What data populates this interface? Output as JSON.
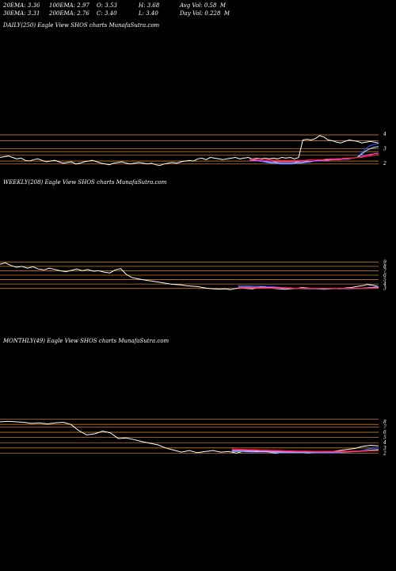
{
  "stats": {
    "row1": [
      "20EMA: 3.36",
      "100EMA: 2.97",
      "O: 3.53",
      "H: 3.68",
      "Avg Vol: 0.58  M"
    ],
    "row2": [
      "30EMA: 3.31",
      "200EMA: 2.76",
      "C: 3.40",
      "L: 3.40",
      "Day Vol: 0.228  M"
    ]
  },
  "panels": {
    "daily_label": "DAILY(250) Eagle   View  SHOS charts MunafaSutra.com",
    "weekly_label": "WEEKLY(208) Eagle   View  SHOS charts MunafaSutra.com",
    "monthly_label": "MONTHLY(49) Eagle   View  SHOS charts MunafaSutra.com"
  },
  "colors": {
    "background": "#000000",
    "price": "#ffffff",
    "ema_blue": "#3355ff",
    "ema_light": "#aaddff",
    "ema_magenta": "#ff44ff",
    "ema_red": "#ff2222",
    "level_lines": "#c8782a"
  },
  "chart_data": [
    {
      "type": "line",
      "title": "DAILY(250) Eagle   View  SHOS charts MunafaSutra.com",
      "y_tick_labels": [
        "4",
        "3",
        "2"
      ],
      "ylim": [
        1.5,
        4.5
      ],
      "y_ticks": [
        4,
        3,
        2
      ],
      "levels": [
        3.95,
        3.55,
        3.0,
        2.8,
        2.55,
        2.15,
        1.95
      ],
      "series": [
        {
          "role": "price",
          "color": "#ffffff",
          "values": [
            2.4,
            2.45,
            2.5,
            2.4,
            2.3,
            2.35,
            2.2,
            2.15,
            2.25,
            2.3,
            2.2,
            2.1,
            2.15,
            2.2,
            2.1,
            2.0,
            2.05,
            2.1,
            1.95,
            2.0,
            2.1,
            2.15,
            2.2,
            2.1,
            2.0,
            1.95,
            1.9,
            2.0,
            2.05,
            2.1,
            2.0,
            1.95,
            2.0,
            2.05,
            2.0,
            1.95,
            2.0,
            1.9,
            1.85,
            1.95,
            2.0,
            2.05,
            2.0,
            2.1,
            2.15,
            2.2,
            2.15,
            2.3,
            2.35,
            2.25,
            2.4,
            2.35,
            2.3,
            2.25,
            2.3,
            2.35,
            2.4,
            2.3,
            2.35,
            2.4,
            2.3,
            2.35,
            2.3,
            2.35,
            2.3,
            2.35,
            2.3,
            2.4,
            2.35,
            2.4,
            2.3,
            2.4,
            3.6,
            3.65,
            3.6,
            3.7,
            3.9,
            3.8,
            3.6,
            3.55,
            3.45,
            3.4,
            3.5,
            3.6,
            3.55,
            3.5,
            3.4,
            3.45,
            3.5,
            3.45,
            3.4
          ]
        },
        {
          "role": "ema",
          "color": "#3355ff",
          "values": [
            2.2,
            2.2,
            2.15,
            2.1,
            2.05,
            2.0,
            2.0,
            1.95,
            1.95,
            1.95,
            1.95,
            2.0,
            2.0,
            2.05,
            2.1,
            2.15,
            2.15,
            2.2,
            2.2,
            2.25,
            2.25,
            2.3,
            2.3,
            2.3,
            2.35,
            2.4,
            2.7,
            3.0,
            3.2,
            3.3,
            3.35
          ]
        },
        {
          "role": "ema",
          "color": "#aaddff",
          "values": [
            2.3,
            2.25,
            2.2,
            2.15,
            2.1,
            2.05,
            2.05,
            2.0,
            2.0,
            2.0,
            2.0,
            2.05,
            2.05,
            2.1,
            2.1,
            2.15,
            2.2,
            2.2,
            2.25,
            2.25,
            2.3,
            2.3,
            2.3,
            2.35,
            2.35,
            2.4,
            2.6,
            2.85,
            3.0,
            3.1,
            3.15
          ]
        },
        {
          "role": "ema",
          "color": "#ff44ff",
          "values": [
            2.2,
            2.2,
            2.2,
            2.15,
            2.15,
            2.15,
            2.1,
            2.1,
            2.1,
            2.1,
            2.1,
            2.1,
            2.15,
            2.15,
            2.15,
            2.15,
            2.2,
            2.2,
            2.2,
            2.25,
            2.25,
            2.25,
            2.3,
            2.3,
            2.35,
            2.4,
            2.45,
            2.55,
            2.6,
            2.65,
            2.7
          ]
        },
        {
          "role": "ema",
          "color": "#ff2222",
          "values": [
            2.3,
            2.3,
            2.3,
            2.25,
            2.25,
            2.25,
            2.2,
            2.2,
            2.2,
            2.2,
            2.2,
            2.2,
            2.2,
            2.2,
            2.25,
            2.25,
            2.25,
            2.25,
            2.3,
            2.3,
            2.3,
            2.3,
            2.35,
            2.35,
            2.35,
            2.4,
            2.4,
            2.45,
            2.5,
            2.55,
            2.6
          ]
        }
      ]
    },
    {
      "type": "line",
      "title": "WEEKLY(208) Eagle   View  SHOS charts MunafaSutra.com",
      "y_tick_labels": [
        "9",
        "8",
        "7",
        "6",
        "5",
        "4",
        "3"
      ],
      "ylim": [
        1.5,
        10.5
      ],
      "y_ticks": [
        9,
        8,
        7,
        6,
        5,
        4,
        3
      ],
      "levels": [
        9,
        8,
        7,
        6,
        5,
        4,
        3
      ],
      "series": [
        {
          "role": "price",
          "color": "#ffffff",
          "values": [
            8.5,
            8.8,
            8.2,
            7.8,
            8.0,
            7.6,
            7.9,
            7.4,
            7.2,
            7.6,
            7.3,
            7.0,
            6.8,
            7.1,
            7.4,
            7.0,
            7.3,
            6.9,
            7.0,
            6.7,
            6.5,
            7.2,
            7.5,
            6.2,
            5.5,
            5.2,
            5.0,
            4.8,
            4.6,
            4.4,
            4.2,
            4.0,
            3.9,
            3.8,
            3.6,
            3.5,
            3.4,
            3.2,
            3.0,
            2.9,
            2.8,
            2.9,
            2.7,
            3.0,
            3.1,
            3.0,
            2.9,
            3.2,
            3.4,
            3.1,
            3.0,
            2.9,
            2.8,
            2.9,
            3.0,
            3.2,
            3.1,
            3.0,
            2.9,
            2.8,
            2.9,
            3.0,
            2.9,
            3.1,
            3.2,
            3.4,
            3.6,
            3.9,
            3.7,
            3.4
          ]
        },
        {
          "role": "ema",
          "color": "#3355ff",
          "values": [
            3.6,
            3.6,
            3.55,
            3.5,
            3.5,
            3.45,
            3.4,
            3.3,
            3.2,
            3.1,
            3.0,
            3.0,
            2.9,
            2.9,
            2.9,
            2.9,
            2.9,
            2.95,
            2.95,
            2.9,
            2.9,
            2.95,
            3.0,
            3.1,
            3.3,
            3.4
          ]
        },
        {
          "role": "ema",
          "color": "#aaddff",
          "values": [
            3.3,
            3.3,
            3.3,
            3.25,
            3.25,
            3.2,
            3.2,
            3.15,
            3.1,
            3.05,
            3.0,
            3.0,
            2.95,
            2.95,
            2.95,
            2.95,
            2.95,
            3.0,
            3.0,
            3.0,
            3.0,
            3.0,
            3.05,
            3.1,
            3.2,
            3.25
          ]
        },
        {
          "role": "ema",
          "color": "#ff44ff",
          "values": [
            3.2,
            3.2,
            3.2,
            3.2,
            3.15,
            3.15,
            3.15,
            3.1,
            3.1,
            3.1,
            3.05,
            3.05,
            3.05,
            3.0,
            3.0,
            3.0,
            3.0,
            3.0,
            3.0,
            3.0,
            3.0,
            3.0,
            3.0,
            3.05,
            3.1,
            3.1
          ]
        },
        {
          "role": "ema",
          "color": "#ff2222",
          "values": [
            3.1,
            3.1,
            3.1,
            3.1,
            3.1,
            3.05,
            3.05,
            3.05,
            3.05,
            3.0,
            3.0,
            3.0,
            3.0,
            3.0,
            3.0,
            3.0,
            3.0,
            3.0,
            3.0,
            3.0,
            3.0,
            3.0,
            3.0,
            3.0,
            3.05,
            3.05
          ]
        }
      ]
    },
    {
      "type": "line",
      "title": "MONTHLY(49) Eagle   View  SHOS charts MunafaSutra.com",
      "y_tick_labels": [
        "8",
        "7",
        "6",
        "5",
        "4",
        "3",
        "2"
      ],
      "ylim": [
        1.0,
        9.5
      ],
      "y_ticks": [
        8,
        7,
        6,
        5,
        4,
        3,
        2
      ],
      "levels": [
        8.5,
        7.5,
        7,
        6,
        5,
        4,
        3,
        2
      ],
      "series": [
        {
          "role": "price",
          "color": "#ffffff",
          "values": [
            8.0,
            8.1,
            8.0,
            7.9,
            7.7,
            7.8,
            7.6,
            7.8,
            7.9,
            7.5,
            6.3,
            5.5,
            5.7,
            6.2,
            5.9,
            4.8,
            4.9,
            4.6,
            4.2,
            3.9,
            3.6,
            3.0,
            2.6,
            2.2,
            2.5,
            2.1,
            2.3,
            2.5,
            2.2,
            2.3,
            2.0,
            2.4,
            2.5,
            2.3,
            2.2,
            2.0,
            2.3,
            2.1,
            2.2,
            2.0,
            2.1,
            2.2,
            2.3,
            2.5,
            2.7,
            2.9,
            3.3,
            3.5,
            3.4
          ]
        },
        {
          "role": "ema",
          "color": "#3355ff",
          "values": [
            2.3,
            2.3,
            2.2,
            2.2,
            2.2,
            2.2,
            2.1,
            2.1,
            2.1,
            2.1,
            2.1,
            2.1,
            2.1,
            2.1,
            2.2,
            2.3,
            2.5,
            2.9,
            3.0
          ]
        },
        {
          "role": "ema",
          "color": "#aaddff",
          "values": [
            2.4,
            2.4,
            2.35,
            2.3,
            2.3,
            2.25,
            2.2,
            2.2,
            2.2,
            2.2,
            2.2,
            2.2,
            2.2,
            2.2,
            2.25,
            2.3,
            2.4,
            2.6,
            2.7
          ]
        },
        {
          "role": "ema",
          "color": "#ff44ff",
          "values": [
            2.6,
            2.6,
            2.55,
            2.5,
            2.45,
            2.4,
            2.35,
            2.3,
            2.3,
            2.3,
            2.25,
            2.25,
            2.25,
            2.25,
            2.3,
            2.3,
            2.35,
            2.45,
            2.5
          ]
        },
        {
          "role": "ema",
          "color": "#ff2222",
          "values": [
            2.8,
            2.75,
            2.7,
            2.65,
            2.6,
            2.55,
            2.5,
            2.45,
            2.4,
            2.4,
            2.35,
            2.35,
            2.35,
            2.35,
            2.35,
            2.4,
            2.4,
            2.45,
            2.5
          ]
        }
      ]
    }
  ]
}
